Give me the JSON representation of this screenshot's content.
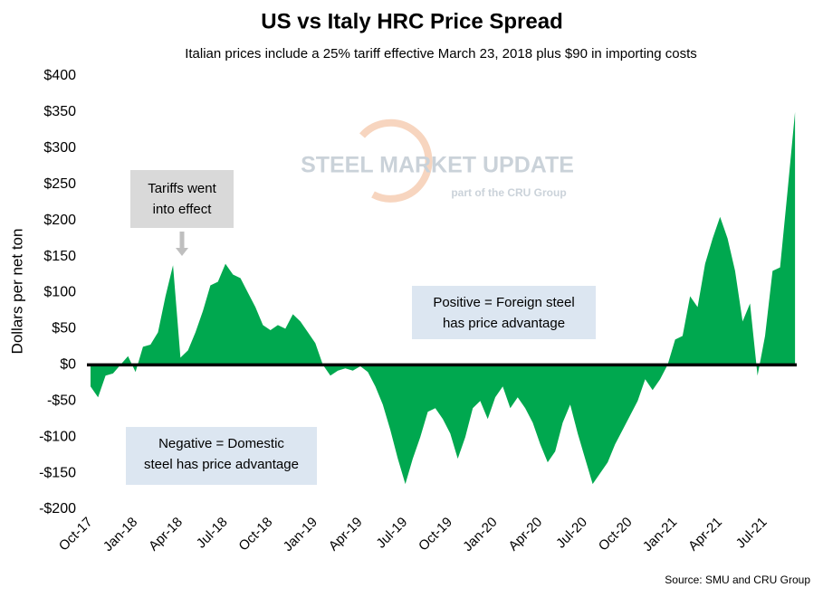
{
  "chart_data": {
    "type": "area",
    "title": "US vs Italy HRC Price Spread",
    "subtitle": "Italian prices include a 25% tariff effective March 23, 2018 plus $90 in importing costs",
    "y_label": "Dollars per net ton",
    "source": "Source: SMU and CRU Group",
    "watermark": [
      "STEEL MARKET UPDATE",
      "part of the CRU Group"
    ],
    "annotations": [
      {
        "lines": [
          "Tariffs went",
          "into effect"
        ]
      },
      {
        "lines": [
          "Positive = Foreign steel",
          "has price advantage"
        ]
      },
      {
        "lines": [
          "Negative = Domestic",
          "steel has price advantage"
        ]
      }
    ],
    "color": "#00a84f",
    "categories": [
      "Oct-17",
      null,
      null,
      null,
      null,
      null,
      "Jan-18",
      null,
      null,
      null,
      null,
      null,
      "Apr-18",
      null,
      null,
      null,
      null,
      null,
      "Jul-18",
      null,
      null,
      null,
      null,
      null,
      "Oct-18",
      null,
      null,
      null,
      null,
      null,
      "Jan-19",
      null,
      null,
      null,
      null,
      null,
      "Apr-19",
      null,
      null,
      null,
      null,
      null,
      "Jul-19",
      null,
      null,
      null,
      null,
      null,
      "Oct-19",
      null,
      null,
      null,
      null,
      null,
      "Jan-20",
      null,
      null,
      null,
      null,
      null,
      "Apr-20",
      null,
      null,
      null,
      null,
      null,
      "Jul-20",
      null,
      null,
      null,
      null,
      null,
      "Oct-20",
      null,
      null,
      null,
      null,
      null,
      "Jan-21",
      null,
      null,
      null,
      null,
      null,
      "Apr-21",
      null,
      null,
      null,
      null,
      null,
      "Jul-21",
      null,
      null,
      null,
      null
    ],
    "values": [
      -30,
      -45,
      -15,
      -12,
      0,
      12,
      -10,
      25,
      28,
      45,
      95,
      138,
      10,
      20,
      45,
      75,
      110,
      115,
      140,
      125,
      120,
      100,
      80,
      55,
      48,
      55,
      50,
      70,
      60,
      45,
      30,
      0,
      -15,
      -8,
      -5,
      -8,
      -2,
      -10,
      -30,
      -55,
      -90,
      -130,
      -165,
      -130,
      -100,
      -65,
      -60,
      -75,
      -95,
      -130,
      -100,
      -60,
      -50,
      -75,
      -45,
      -30,
      -60,
      -45,
      -60,
      -80,
      -110,
      -135,
      -120,
      -80,
      -55,
      -95,
      -130,
      -165,
      -150,
      -135,
      -110,
      -90,
      -70,
      -50,
      -20,
      -35,
      -20,
      0,
      35,
      40,
      95,
      80,
      140,
      175,
      205,
      175,
      130,
      60,
      85,
      -15,
      40,
      130,
      135,
      240,
      350
    ],
    "ylim": [
      -200,
      400
    ],
    "yticks": [
      {
        "value": -200,
        "label": "-$200"
      },
      {
        "value": -150,
        "label": "-$150"
      },
      {
        "value": -100,
        "label": "-$100"
      },
      {
        "value": -50,
        "label": "-$50"
      },
      {
        "value": 0,
        "label": "$0"
      },
      {
        "value": 50,
        "label": "$50"
      },
      {
        "value": 100,
        "label": "$100"
      },
      {
        "value": 150,
        "label": "$150"
      },
      {
        "value": 200,
        "label": "$200"
      },
      {
        "value": 250,
        "label": "$250"
      },
      {
        "value": 300,
        "label": "$300"
      },
      {
        "value": 350,
        "label": "$350"
      },
      {
        "value": 400,
        "label": "$400"
      }
    ],
    "grid": false
  }
}
